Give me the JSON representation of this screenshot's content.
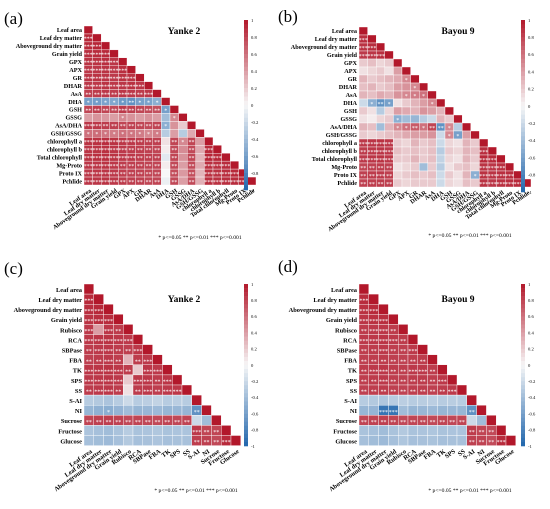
{
  "figure": {
    "sig_legend_text": "* p<=0.05  ** p<=0.01  *** p<=0.001",
    "colorbar_ticks": [
      "1",
      "0.8",
      "0.6",
      "0.4",
      "0.2",
      "0",
      "-0.2",
      "-0.4",
      "-0.6",
      "-0.8",
      "-1"
    ],
    "colors": {
      "positive": "#b2182b",
      "neutral": "#f7f7f7",
      "negative": "#2166ac",
      "text": "#000000"
    }
  },
  "chart_data": [
    {
      "type": "heatmap",
      "panel_label": "(a)",
      "title": "Yanke 2",
      "variables": [
        "Leaf area",
        "Leaf dry matter",
        "Aboveground dry matter",
        "Grain yield",
        "GPX",
        "APX",
        "GR",
        "DHAR",
        "AsA",
        "DHA",
        "GSH",
        "GSSG",
        "AsA/DHA",
        "GSH/GSSG",
        "chlorophyll a",
        "chlorophyll b",
        "Total chlorophyll",
        "Mg-Proto",
        "Proto IX",
        "Pchlide"
      ],
      "value_range": [
        -1,
        1
      ],
      "layout": "lower-triangle",
      "matrix": [
        [
          1
        ],
        [
          0.93,
          1
        ],
        [
          0.92,
          0.94,
          1
        ],
        [
          0.9,
          0.91,
          0.92,
          1
        ],
        [
          0.88,
          0.89,
          0.9,
          0.87,
          1
        ],
        [
          0.86,
          0.87,
          0.88,
          0.86,
          0.9,
          1
        ],
        [
          0.87,
          0.88,
          0.87,
          0.85,
          0.89,
          0.88,
          1
        ],
        [
          0.85,
          0.86,
          0.88,
          0.86,
          0.87,
          0.89,
          0.87,
          1
        ],
        [
          0.82,
          0.84,
          0.85,
          0.83,
          0.86,
          0.85,
          0.84,
          0.86,
          1
        ],
        [
          -0.6,
          -0.62,
          -0.58,
          -0.55,
          -0.65,
          -0.7,
          -0.6,
          -0.58,
          -0.5,
          1
        ],
        [
          0.8,
          0.82,
          0.8,
          0.78,
          0.85,
          0.82,
          0.8,
          0.78,
          0.75,
          -0.6,
          1
        ],
        [
          0.4,
          0.45,
          0.42,
          0.4,
          0.5,
          0.45,
          0.4,
          0.45,
          0.4,
          -0.4,
          0.5,
          1
        ],
        [
          0.85,
          0.86,
          0.84,
          0.82,
          0.8,
          0.82,
          0.8,
          0.78,
          0.8,
          -0.5,
          0.45,
          0.2,
          1
        ],
        [
          0.6,
          0.62,
          0.58,
          0.55,
          0.6,
          0.58,
          0.55,
          0.5,
          0.55,
          -0.3,
          0.4,
          -0.3,
          0.35,
          1
        ],
        [
          0.88,
          0.89,
          0.9,
          0.88,
          0.86,
          0.85,
          0.84,
          0.83,
          0.82,
          0.1,
          0.8,
          0.5,
          0.8,
          0.4,
          1
        ],
        [
          0.87,
          0.88,
          0.89,
          0.87,
          0.85,
          0.84,
          0.83,
          0.82,
          0.8,
          0.05,
          0.78,
          0.48,
          0.78,
          0.35,
          0.92,
          1
        ],
        [
          0.88,
          0.9,
          0.9,
          0.88,
          0.86,
          0.86,
          0.84,
          0.84,
          0.82,
          -0.1,
          0.8,
          0.45,
          0.8,
          0.3,
          0.94,
          0.93,
          1
        ],
        [
          0.86,
          0.87,
          0.88,
          0.86,
          0.84,
          0.83,
          0.82,
          0.81,
          0.8,
          0.05,
          0.78,
          0.4,
          0.78,
          0.35,
          0.9,
          0.89,
          0.91,
          1
        ],
        [
          0.85,
          0.86,
          0.87,
          0.85,
          0.83,
          0.82,
          0.81,
          0.8,
          0.79,
          0.0,
          0.76,
          0.42,
          0.76,
          0.3,
          0.89,
          0.88,
          0.9,
          0.92,
          1
        ],
        [
          0.86,
          0.87,
          0.88,
          0.86,
          0.84,
          0.83,
          0.82,
          0.8,
          0.8,
          -0.05,
          0.78,
          0.4,
          0.78,
          0.32,
          0.9,
          0.89,
          0.9,
          0.91,
          0.93,
          1
        ]
      ]
    },
    {
      "type": "heatmap",
      "panel_label": "(b)",
      "title": "Bayou 9",
      "variables": [
        "Leaf area",
        "Leaf dry matter",
        "Aboveground dry matter",
        "Grain yield",
        "GPX",
        "APX",
        "GR",
        "DHAR",
        "AsA",
        "DHA",
        "GSH",
        "GSSG",
        "AsA/DHA",
        "GSH/GSSG",
        "chlorophyll a",
        "chlorophyll b",
        "Total chlorophyll",
        "Mg-Proto",
        "Proto IX",
        "Pchlide"
      ],
      "value_range": [
        -1,
        1
      ],
      "layout": "lower-triangle",
      "matrix": [
        [
          1
        ],
        [
          0.9,
          1
        ],
        [
          0.88,
          0.91,
          1
        ],
        [
          0.85,
          0.87,
          0.9,
          1
        ],
        [
          0.2,
          0.25,
          0.15,
          0.2,
          1
        ],
        [
          0.1,
          0.15,
          0.2,
          0.1,
          0.4,
          1
        ],
        [
          0.3,
          0.2,
          0.25,
          0.3,
          0.35,
          0.5,
          1
        ],
        [
          0.25,
          0.3,
          0.2,
          0.25,
          0.4,
          0.45,
          0.5,
          1
        ],
        [
          0.3,
          0.25,
          0.35,
          0.3,
          0.45,
          0.5,
          0.55,
          0.6,
          1
        ],
        [
          -0.2,
          -0.5,
          -0.7,
          -0.6,
          0.1,
          0.2,
          0.3,
          0.4,
          0.5,
          1
        ],
        [
          0.2,
          0.1,
          -0.3,
          0.15,
          0.4,
          0.35,
          0.3,
          0.45,
          0.4,
          0.3,
          1
        ],
        [
          0.1,
          0.05,
          0.15,
          0.2,
          -0.5,
          -0.4,
          -0.45,
          -0.3,
          -0.2,
          0.3,
          0.2,
          1
        ],
        [
          0.3,
          0.25,
          -0.4,
          0.3,
          0.5,
          0.6,
          0.7,
          0.6,
          0.8,
          -0.7,
          0.5,
          -0.3,
          1
        ],
        [
          0.2,
          0.15,
          0.2,
          0.25,
          0.3,
          0.35,
          0.4,
          0.4,
          0.45,
          -0.2,
          0.5,
          -0.6,
          0.4,
          1
        ],
        [
          0.85,
          0.87,
          0.88,
          0.86,
          0.2,
          0.15,
          0.3,
          0.2,
          0.25,
          -0.2,
          0.15,
          0.1,
          0.3,
          0.2,
          1
        ],
        [
          0.84,
          0.86,
          0.87,
          0.85,
          0.25,
          0.2,
          0.25,
          0.2,
          0.25,
          -0.3,
          0.2,
          0.15,
          0.3,
          0.25,
          0.9,
          1
        ],
        [
          0.85,
          0.87,
          0.88,
          0.86,
          0.2,
          0.2,
          0.3,
          0.2,
          0.25,
          -0.25,
          0.15,
          0.1,
          0.3,
          0.2,
          0.93,
          0.92,
          1
        ],
        [
          0.8,
          0.82,
          0.84,
          0.82,
          0.1,
          0.15,
          0.2,
          -0.4,
          0.2,
          -0.3,
          0.1,
          0.2,
          0.25,
          0.15,
          0.88,
          0.87,
          0.89,
          1
        ],
        [
          0.82,
          0.84,
          0.85,
          0.83,
          0.15,
          0.2,
          0.25,
          0.2,
          0.25,
          -0.2,
          0.2,
          0.1,
          0.3,
          -0.5,
          0.89,
          0.88,
          0.9,
          0.91,
          1
        ],
        [
          0.81,
          0.83,
          0.84,
          0.82,
          0.2,
          0.15,
          0.2,
          0.2,
          0.2,
          -0.2,
          0.15,
          0.1,
          0.25,
          0.2,
          0.88,
          0.87,
          0.89,
          0.9,
          0.92,
          1
        ]
      ]
    },
    {
      "type": "heatmap",
      "panel_label": "(c)",
      "title": "Yanke 2",
      "variables": [
        "Leaf area",
        "Leaf dry matter",
        "Aboveground dry matter",
        "Grain yield",
        "Rubisco",
        "RCA",
        "SBPase",
        "FBA",
        "TK",
        "SPS",
        "SS",
        "S-AI",
        "NI",
        "Sucrose",
        "Fructose",
        "Glucose"
      ],
      "value_range": [
        -1,
        1
      ],
      "layout": "lower-triangle",
      "matrix": [
        [
          1
        ],
        [
          0.92,
          1
        ],
        [
          0.9,
          0.93,
          1
        ],
        [
          0.88,
          0.9,
          0.91,
          1
        ],
        [
          0.85,
          0.4,
          0.86,
          0.84,
          1
        ],
        [
          0.86,
          0.87,
          0.88,
          0.86,
          0.85,
          1
        ],
        [
          0.84,
          0.85,
          0.86,
          0.84,
          0.83,
          0.86,
          1
        ],
        [
          0.82,
          0.84,
          0.85,
          0.83,
          0.3,
          0.84,
          0.85,
          1
        ],
        [
          0.86,
          0.87,
          0.88,
          0.86,
          0.84,
          0.2,
          0.86,
          0.85,
          1
        ],
        [
          0.85,
          0.86,
          0.87,
          0.85,
          0.2,
          0.85,
          0.86,
          0.84,
          0.87,
          1
        ],
        [
          0.84,
          0.85,
          0.86,
          0.84,
          0.1,
          0.84,
          0.85,
          0.83,
          0.85,
          0.86,
          1
        ],
        [
          -0.3,
          -0.32,
          -0.35,
          -0.3,
          -0.2,
          -0.3,
          -0.28,
          -0.25,
          -0.3,
          -0.28,
          -0.3,
          1
        ],
        [
          -0.45,
          -0.48,
          -0.5,
          -0.46,
          -0.4,
          -0.45,
          -0.44,
          -0.42,
          -0.45,
          -0.44,
          -0.45,
          -0.7,
          1
        ],
        [
          0.8,
          0.82,
          0.83,
          0.81,
          0.78,
          0.8,
          0.79,
          0.78,
          0.8,
          0.79,
          0.8,
          -0.2,
          -0.4,
          1
        ],
        [
          -0.35,
          -0.38,
          -0.4,
          -0.36,
          -0.3,
          -0.36,
          -0.35,
          -0.33,
          -0.36,
          -0.35,
          -0.35,
          0.85,
          0.8,
          0.8,
          1
        ],
        [
          -0.38,
          -0.4,
          -0.42,
          -0.38,
          -0.32,
          -0.38,
          -0.37,
          -0.35,
          -0.38,
          -0.37,
          -0.37,
          0.83,
          0.82,
          0.78,
          0.92,
          1
        ]
      ]
    },
    {
      "type": "heatmap",
      "panel_label": "(d)",
      "title": "Bayou 9",
      "variables": [
        "Leaf area",
        "Leaf dry matter",
        "Aboveground dry matter",
        "Grain yield",
        "Rubisco",
        "RCA",
        "SBPase",
        "FBA",
        "TK",
        "SPS",
        "SS",
        "S-AI",
        "NI",
        "Sucrose",
        "Fructose",
        "Glucose"
      ],
      "value_range": [
        -1,
        1
      ],
      "layout": "lower-triangle",
      "matrix": [
        [
          1
        ],
        [
          0.91,
          1
        ],
        [
          0.89,
          0.92,
          1
        ],
        [
          0.87,
          0.89,
          0.9,
          1
        ],
        [
          0.84,
          0.85,
          0.86,
          0.84,
          1
        ],
        [
          0.85,
          0.86,
          0.87,
          0.85,
          0.84,
          1
        ],
        [
          0.83,
          0.84,
          0.85,
          0.83,
          0.82,
          0.85,
          1
        ],
        [
          0.82,
          0.83,
          0.84,
          0.82,
          0.81,
          0.83,
          0.84,
          1
        ],
        [
          0.84,
          0.85,
          0.86,
          0.84,
          0.83,
          0.85,
          0.85,
          0.84,
          1
        ],
        [
          0.83,
          0.84,
          0.85,
          0.83,
          0.82,
          0.84,
          0.84,
          0.83,
          0.86,
          1
        ],
        [
          0.82,
          0.83,
          0.84,
          0.82,
          0.81,
          0.83,
          0.83,
          0.82,
          0.84,
          0.85,
          1
        ],
        [
          -0.3,
          -0.32,
          -0.34,
          -0.3,
          -0.28,
          -0.3,
          -0.29,
          -0.28,
          -0.3,
          -0.29,
          -0.3,
          1
        ],
        [
          -0.45,
          -0.46,
          -0.9,
          -0.9,
          -0.4,
          -0.45,
          -0.44,
          -0.42,
          -0.45,
          -0.44,
          -0.45,
          -0.7,
          1
        ],
        [
          0.8,
          0.81,
          0.82,
          0.8,
          0.78,
          0.8,
          0.79,
          0.78,
          0.8,
          0.79,
          0.8,
          -0.2,
          -0.4,
          1
        ],
        [
          -0.36,
          -0.38,
          -0.4,
          -0.36,
          -0.32,
          -0.36,
          -0.35,
          -0.34,
          -0.36,
          -0.35,
          -0.35,
          0.84,
          0.8,
          0.78,
          1
        ],
        [
          -0.38,
          -0.4,
          -0.42,
          -0.38,
          -0.34,
          -0.38,
          -0.37,
          -0.36,
          -0.38,
          -0.37,
          -0.37,
          0.82,
          0.81,
          0.77,
          0.91,
          1
        ]
      ]
    }
  ]
}
